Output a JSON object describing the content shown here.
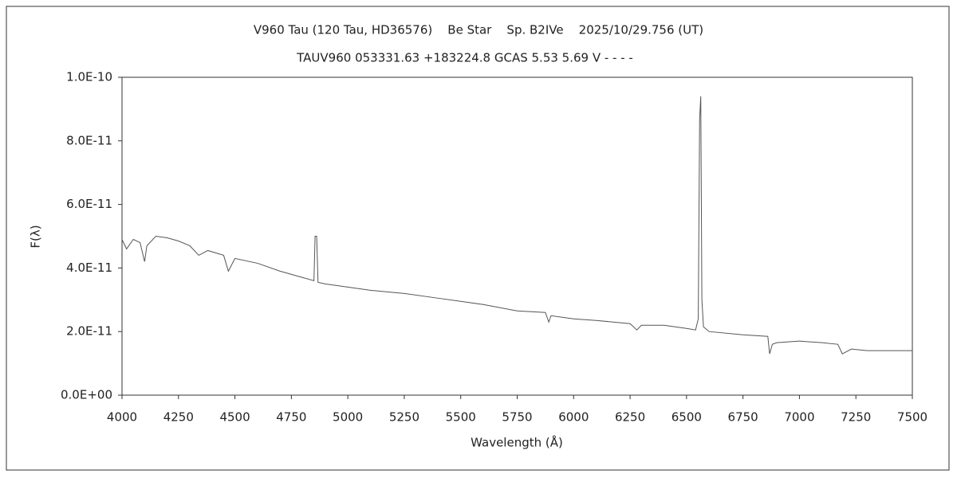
{
  "chart_data": {
    "type": "line",
    "title": "V960 Tau (120 Tau, HD36576)    Be Star    Sp. B2IVe    2025/10/29.756 (UT)",
    "subtitle": "TAUV960 053331.63 +183224.8 GCAS 5.53 5.69 V - - - -",
    "x_label": "Wavelength (Å)",
    "y_label": "F(λ)",
    "color": "#555555",
    "x": [
      4000,
      4020,
      4050,
      4080,
      4100,
      4110,
      4150,
      4200,
      4250,
      4300,
      4340,
      4380,
      4450,
      4471,
      4500,
      4600,
      4700,
      4800,
      4850,
      4855,
      4862,
      4868,
      4900,
      5000,
      5100,
      5250,
      5400,
      5500,
      5600,
      5750,
      5875,
      5890,
      5900,
      6000,
      6100,
      6250,
      6280,
      6300,
      6400,
      6500,
      6540,
      6552,
      6558,
      6563,
      6568,
      6575,
      6600,
      6750,
      6860,
      6868,
      6880,
      6900,
      7000,
      7100,
      7170,
      7190,
      7230,
      7300,
      7400,
      7500
    ],
    "values": [
      4.9e-11,
      4.6e-11,
      4.9e-11,
      4.8e-11,
      4.2e-11,
      4.7e-11,
      5e-11,
      4.95e-11,
      4.85e-11,
      4.7e-11,
      4.4e-11,
      4.55e-11,
      4.4e-11,
      3.9e-11,
      4.3e-11,
      4.15e-11,
      3.9e-11,
      3.7e-11,
      3.6e-11,
      5e-11,
      5e-11,
      3.55e-11,
      3.5e-11,
      3.4e-11,
      3.3e-11,
      3.2e-11,
      3.05e-11,
      2.95e-11,
      2.85e-11,
      2.65e-11,
      2.6e-11,
      2.3e-11,
      2.5e-11,
      2.4e-11,
      2.35e-11,
      2.25e-11,
      2.05e-11,
      2.2e-11,
      2.2e-11,
      2.1e-11,
      2.05e-11,
      2.4e-11,
      8.7e-11,
      9.4e-11,
      3e-11,
      2.15e-11,
      2e-11,
      1.9e-11,
      1.85e-11,
      1.3e-11,
      1.6e-11,
      1.65e-11,
      1.7e-11,
      1.65e-11,
      1.6e-11,
      1.3e-11,
      1.45e-11,
      1.4e-11,
      1.4e-11,
      1.4e-11
    ],
    "xlim": [
      4000,
      7500
    ],
    "xticks": [
      4000,
      4250,
      4500,
      4750,
      5000,
      5250,
      5500,
      5750,
      6000,
      6250,
      6500,
      6750,
      7000,
      7250,
      7500
    ],
    "ylim": [
      0,
      1e-10
    ],
    "yticks": [
      {
        "value": 0,
        "label": "0.0E+00"
      },
      {
        "value": 2e-11,
        "label": "2.0E-11"
      },
      {
        "value": 4e-11,
        "label": "4.0E-11"
      },
      {
        "value": 6e-11,
        "label": "6.0E-11"
      },
      {
        "value": 8e-11,
        "label": "8.0E-11"
      },
      {
        "value": 1e-10,
        "label": "1.0E-10"
      }
    ]
  }
}
